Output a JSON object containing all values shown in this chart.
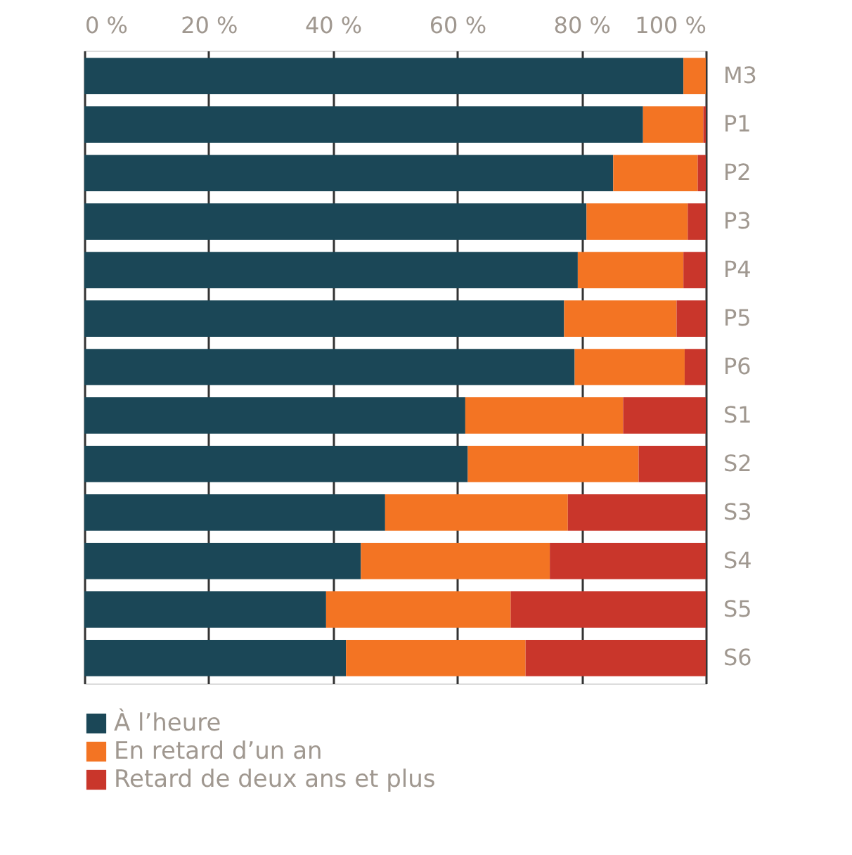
{
  "chart_data": {
    "type": "bar",
    "orientation": "horizontal",
    "stacked": true,
    "categories": [
      "M3",
      "P1",
      "P2",
      "P3",
      "P4",
      "P5",
      "P6",
      "S1",
      "S2",
      "S3",
      "S4",
      "S5",
      "S6"
    ],
    "series": [
      {
        "name": "À l’heure",
        "color": "#1b4757",
        "values": [
          96.4,
          89.9,
          85.1,
          80.8,
          79.4,
          77.2,
          78.9,
          61.3,
          61.7,
          48.4,
          44.5,
          38.9,
          42.1
        ]
      },
      {
        "name": "En retard d’un an",
        "color": "#f37423",
        "values": [
          3.6,
          9.7,
          13.6,
          16.3,
          17.0,
          18.1,
          17.7,
          25.4,
          27.5,
          29.4,
          30.4,
          29.7,
          28.9
        ]
      },
      {
        "name": "Retard de deux ans et plus",
        "color": "#c9362b",
        "values": [
          0,
          0.4,
          1.3,
          2.9,
          3.6,
          4.7,
          3.4,
          13.3,
          10.8,
          22.2,
          25.1,
          31.4,
          29.0
        ]
      }
    ],
    "xlim": [
      0,
      100
    ],
    "xticks": [
      {
        "value": 0,
        "label": "0 %"
      },
      {
        "value": 20,
        "label": "20 %"
      },
      {
        "value": 40,
        "label": "40 %"
      },
      {
        "value": 60,
        "label": "60 %"
      },
      {
        "value": 80,
        "label": "80 %"
      },
      {
        "value": 100,
        "label": "100 %"
      }
    ],
    "grid": "x",
    "legend": "bottom"
  }
}
